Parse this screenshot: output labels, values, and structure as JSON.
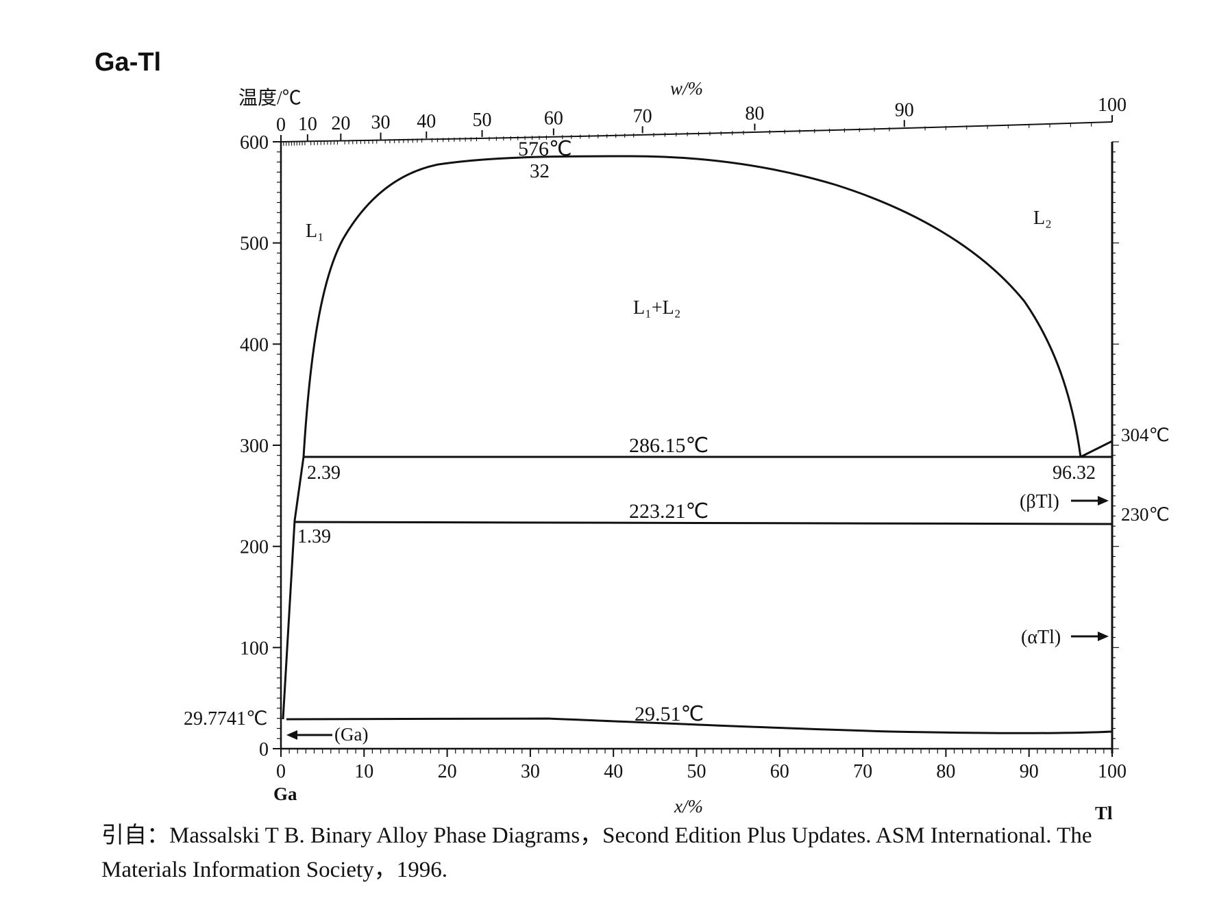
{
  "title": "Ga-Tl",
  "y_axis_label": "温度/℃",
  "top_axis_label": "w/%",
  "bottom_axis_label": "x/%",
  "element_left": "Ga",
  "element_right": "Tl",
  "top_ticks": [
    "0",
    "10",
    "20",
    "30",
    "40",
    "50",
    "60",
    "70",
    "80",
    "90",
    "100"
  ],
  "bottom_ticks": [
    "0",
    "10",
    "20",
    "30",
    "40",
    "50",
    "60",
    "70",
    "80",
    "90",
    "100"
  ],
  "left_ticks": [
    "0",
    "100",
    "200",
    "300",
    "400",
    "500",
    "600"
  ],
  "labels": {
    "ga_melt": "29.7741℃",
    "critical_temp": "576℃",
    "critical_comp": "32",
    "monotectic_temp": "286.15℃",
    "monotectic_left": "2.39",
    "monotectic_right": "96.32",
    "eutectoid_temp": "223.21℃",
    "eutectoid_left": "1.39",
    "eutectic_temp": "29.51℃",
    "tl_melt": "304℃",
    "tl_transform": "230℃",
    "phase_ga": "(Ga)",
    "phase_beta": "(βTl)",
    "phase_alpha": "(αTl)",
    "region_l1": "L₁",
    "region_l2": "L₂",
    "region_l1l2": "L₁+L₂"
  },
  "caption_line1": "引自：Massalski T B. Binary Alloy Phase Diagrams，Second Edition Plus Updates. ASM International. The",
  "caption_line2": "Materials Information Society，1996."
}
